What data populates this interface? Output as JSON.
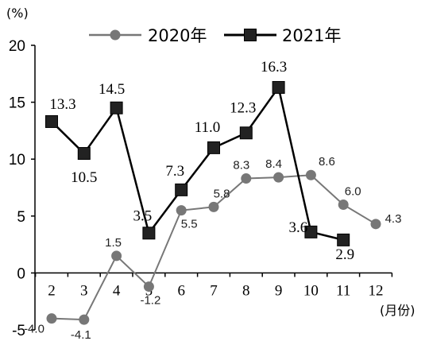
{
  "chart_data": {
    "type": "line",
    "ylabel": "(%)",
    "xlabel": "(月份)",
    "ylim": [
      -5,
      20
    ],
    "yticks": [
      -5,
      0,
      5,
      10,
      15,
      20
    ],
    "categories": [
      "2",
      "3",
      "4",
      "5",
      "6",
      "7",
      "8",
      "9",
      "10",
      "11",
      "12"
    ],
    "legend_position": "top",
    "series": [
      {
        "name": "2020年",
        "color": "#777777",
        "marker": "circle",
        "values": [
          -4.0,
          -4.1,
          1.5,
          -1.2,
          5.5,
          5.8,
          8.3,
          8.4,
          8.6,
          6.0,
          4.3
        ],
        "labels": [
          "-4.0",
          "-4.1",
          "1.5",
          "-1.2",
          "5.5",
          "5.8",
          "8.3",
          "8.4",
          "8.6",
          "6.0",
          "4.3"
        ]
      },
      {
        "name": "2021年",
        "color": "#000000",
        "marker": "square",
        "values": [
          13.3,
          10.5,
          14.5,
          3.5,
          7.3,
          11.0,
          12.3,
          16.3,
          3.6,
          2.9,
          null
        ],
        "labels": [
          "13.3",
          "10.5",
          "14.5",
          "3.5",
          "7.3",
          "11.0",
          "12.3",
          "16.3",
          "3.6",
          "2.9",
          null
        ]
      }
    ]
  }
}
